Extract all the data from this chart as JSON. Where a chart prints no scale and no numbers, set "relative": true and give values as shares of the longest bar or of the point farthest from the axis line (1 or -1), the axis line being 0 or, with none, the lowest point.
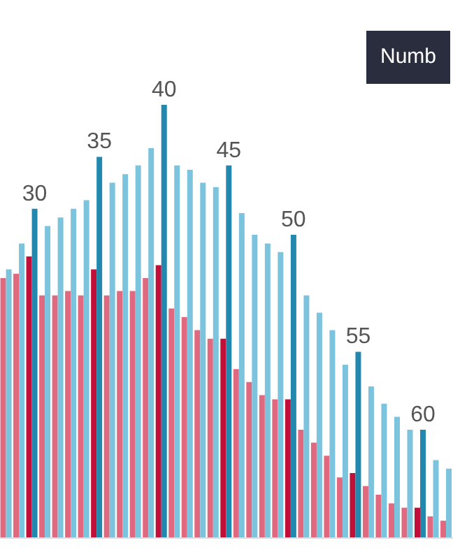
{
  "chart_data": {
    "type": "bar",
    "relative": true,
    "annotations": [
      "Numb"
    ],
    "categories": [
      null,
      null,
      "30",
      null,
      null,
      null,
      null,
      "35",
      null,
      null,
      null,
      null,
      "40",
      null,
      null,
      null,
      null,
      "45",
      null,
      null,
      null,
      null,
      "50",
      null,
      null,
      null,
      null,
      "55",
      null,
      null,
      null,
      null,
      "60",
      null,
      null
    ],
    "series": [
      {
        "color": "#e0687f",
        "colors": [
          null,
          null,
          "#c0103a",
          null,
          null,
          null,
          null,
          "#c0103a",
          null,
          null,
          null,
          null,
          "#c0103a",
          null,
          null,
          null,
          null,
          "#c0103a",
          null,
          null,
          null,
          null,
          "#c0103a",
          null,
          null,
          null,
          null,
          "#c0103a",
          null,
          null,
          null,
          null,
          "#c0103a",
          null,
          null
        ],
        "values": [
          0.6,
          0.61,
          0.65,
          0.56,
          0.56,
          0.57,
          0.56,
          0.62,
          0.56,
          0.57,
          0.57,
          0.6,
          0.63,
          0.53,
          0.51,
          0.48,
          0.46,
          0.46,
          0.39,
          0.36,
          0.33,
          0.32,
          0.32,
          0.25,
          0.22,
          0.19,
          0.14,
          0.15,
          0.12,
          0.1,
          0.08,
          0.07,
          0.07,
          0.05,
          0.04
        ]
      },
      {
        "color": "#7cc3de",
        "colors": [
          null,
          null,
          "#2388ae",
          null,
          null,
          null,
          null,
          "#2388ae",
          null,
          null,
          null,
          null,
          "#2388ae",
          null,
          null,
          null,
          null,
          "#2388ae",
          null,
          null,
          null,
          null,
          "#2388ae",
          null,
          null,
          null,
          null,
          "#2388ae",
          null,
          null,
          null,
          null,
          "#2388ae",
          null,
          null
        ],
        "values": [
          0.62,
          0.68,
          0.76,
          0.72,
          0.74,
          0.76,
          0.78,
          0.88,
          0.82,
          0.84,
          0.86,
          0.9,
          1,
          0.86,
          0.85,
          0.82,
          0.81,
          0.86,
          0.75,
          0.7,
          0.68,
          0.66,
          0.7,
          0.56,
          0.52,
          0.48,
          0.4,
          0.43,
          0.35,
          0.31,
          0.28,
          0.25,
          0.25,
          0.18,
          0.16
        ]
      }
    ]
  }
}
